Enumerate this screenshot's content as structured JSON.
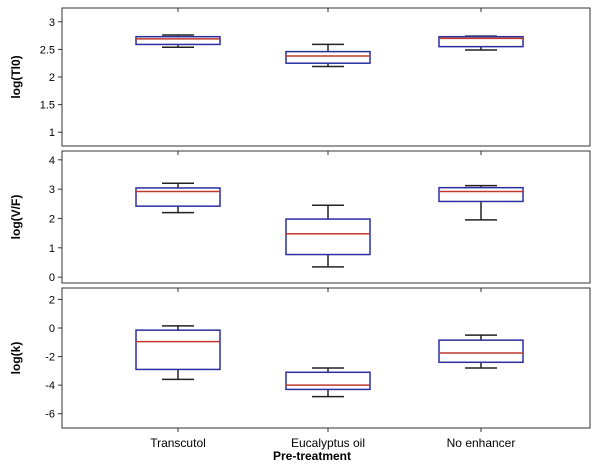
{
  "figure": {
    "xlabel": "Pre-treatment"
  },
  "chart_data": [
    {
      "type": "boxplot",
      "ylabel": "log(Tl0)",
      "ylim": [
        0.75,
        3.25
      ],
      "yticks": [
        1,
        1.5,
        2,
        2.5,
        3
      ],
      "ytick_labels": [
        "1",
        "1.5",
        "2",
        "2.5",
        "3"
      ],
      "categories": [
        "Transcutol",
        "Eucalyptus oil",
        "No enhancer"
      ],
      "boxes": [
        {
          "whisker_low": 2.54,
          "q1": 2.59,
          "median": 2.69,
          "q3": 2.73,
          "whisker_high": 2.76
        },
        {
          "whisker_low": 2.19,
          "q1": 2.25,
          "median": 2.38,
          "q3": 2.46,
          "whisker_high": 2.59
        },
        {
          "whisker_low": 2.49,
          "q1": 2.55,
          "median": 2.7,
          "q3": 2.73,
          "whisker_high": 2.74
        }
      ]
    },
    {
      "type": "boxplot",
      "ylabel": "log(V/F)",
      "ylim": [
        -0.2,
        4.3
      ],
      "yticks": [
        0,
        1,
        2,
        3,
        4
      ],
      "ytick_labels": [
        "0",
        "1",
        "2",
        "3",
        "4"
      ],
      "categories": [
        "Transcutol",
        "Eucalyptus oil",
        "No enhancer"
      ],
      "boxes": [
        {
          "whisker_low": 2.2,
          "q1": 2.42,
          "median": 2.92,
          "q3": 3.04,
          "whisker_high": 3.2
        },
        {
          "whisker_low": 0.35,
          "q1": 0.77,
          "median": 1.48,
          "q3": 1.98,
          "whisker_high": 2.45
        },
        {
          "whisker_low": 1.95,
          "q1": 2.58,
          "median": 2.92,
          "q3": 3.05,
          "whisker_high": 3.12
        }
      ]
    },
    {
      "type": "boxplot",
      "ylabel": "log(k)",
      "ylim": [
        -7,
        2.8
      ],
      "yticks": [
        -6,
        -4,
        -2,
        0,
        2
      ],
      "ytick_labels": [
        "-6",
        "-4",
        "-2",
        "0",
        "2"
      ],
      "categories": [
        "Transcutol",
        "Eucalyptus oil",
        "No enhancer"
      ],
      "boxes": [
        {
          "whisker_low": -3.6,
          "q1": -2.9,
          "median": -0.95,
          "q3": -0.15,
          "whisker_high": 0.15
        },
        {
          "whisker_low": -4.8,
          "q1": -4.3,
          "median": -4.0,
          "q3": -3.1,
          "whisker_high": -2.8
        },
        {
          "whisker_low": -2.8,
          "q1": -2.4,
          "median": -1.75,
          "q3": -0.85,
          "whisker_high": -0.5
        }
      ]
    }
  ],
  "style": {
    "box_color": "#2a2fa0",
    "median_color": "#c0392b",
    "whisker_color": "#222222",
    "frame_color": "#333333"
  }
}
